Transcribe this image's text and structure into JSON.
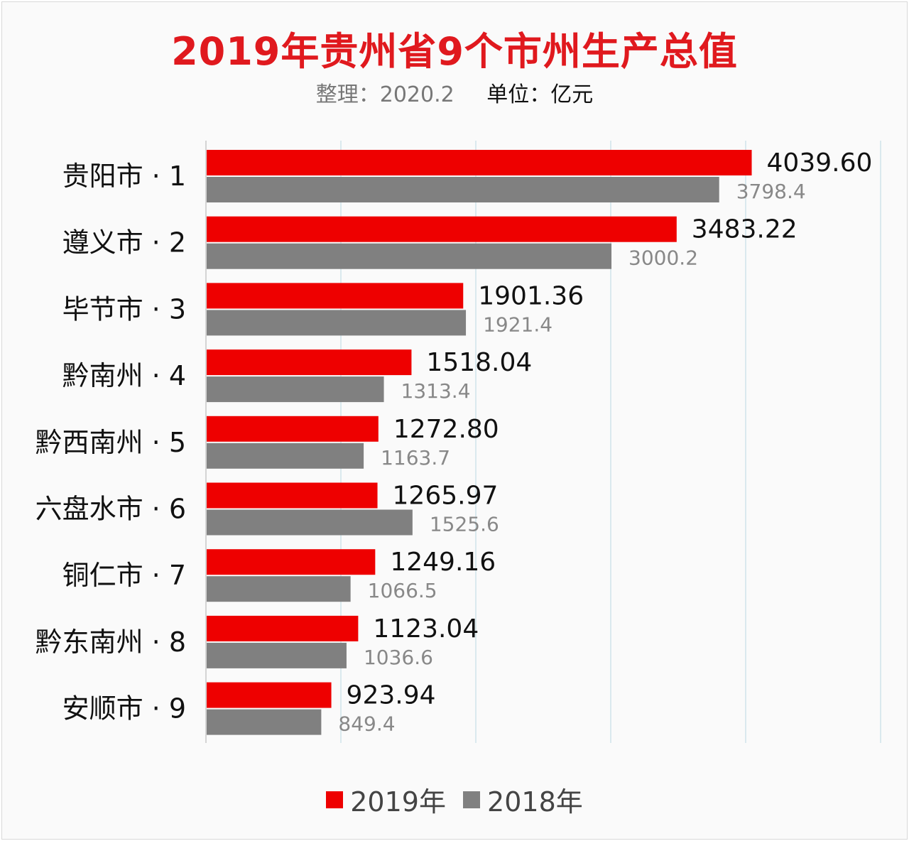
{
  "chart_data": {
    "type": "bar",
    "orientation": "horizontal",
    "title": "2019年贵州省9个市州生产总值",
    "subtitle_left": "整理：2020.2",
    "subtitle_right": "单位：亿元",
    "categories": [
      "贵阳市 · 1",
      "遵义市 · 2",
      "毕节市 · 3",
      "黔南州 · 4",
      "黔西南州 · 5",
      "六盘水市 · 6",
      "铜仁市 · 7",
      "黔东南州 · 8",
      "安顺市 · 9"
    ],
    "series": [
      {
        "name": "2019年",
        "color": "#ee0000",
        "values": [
          4039.6,
          3483.22,
          1901.36,
          1518.04,
          1272.8,
          1265.97,
          1249.16,
          1123.04,
          923.94
        ],
        "labels": [
          "4039.60",
          "3483.22",
          "1901.36",
          "1518.04",
          "1272.80",
          "1265.97",
          "1249.16",
          "1123.04",
          "923.94"
        ]
      },
      {
        "name": "2018年",
        "color": "#808080",
        "values": [
          3798.4,
          3000.2,
          1921.4,
          1313.4,
          1163.7,
          1525.6,
          1066.5,
          1036.6,
          849.4
        ],
        "labels": [
          "3798.4",
          "3000.2",
          "1921.4",
          "1313.4",
          "1163.7",
          "1525.6",
          "1066.5",
          "1036.6",
          "849.4"
        ]
      }
    ],
    "xlim": [
      0,
      5000
    ],
    "grid": true,
    "legend": "bottom"
  }
}
